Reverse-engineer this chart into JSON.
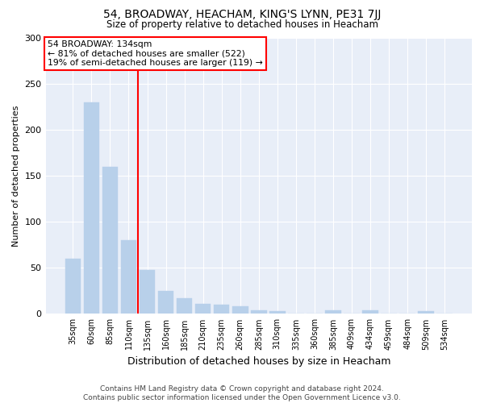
{
  "title": "54, BROADWAY, HEACHAM, KING'S LYNN, PE31 7JJ",
  "subtitle": "Size of property relative to detached houses in Heacham",
  "xlabel": "Distribution of detached houses by size in Heacham",
  "ylabel": "Number of detached properties",
  "categories": [
    "35sqm",
    "60sqm",
    "85sqm",
    "110sqm",
    "135sqm",
    "160sqm",
    "185sqm",
    "210sqm",
    "235sqm",
    "260sqm",
    "285sqm",
    "310sqm",
    "335sqm",
    "360sqm",
    "385sqm",
    "409sqm",
    "434sqm",
    "459sqm",
    "484sqm",
    "509sqm",
    "534sqm"
  ],
  "values": [
    60,
    230,
    160,
    80,
    48,
    25,
    17,
    11,
    10,
    8,
    4,
    3,
    0,
    0,
    4,
    0,
    4,
    0,
    0,
    3,
    0
  ],
  "bar_color": "#b8d0ea",
  "bar_edge_color": "#b8d0ea",
  "red_line_index": 4,
  "annotation_title": "54 BROADWAY: 134sqm",
  "annotation_line1": "← 81% of detached houses are smaller (522)",
  "annotation_line2": "19% of semi-detached houses are larger (119) →",
  "ylim": [
    0,
    300
  ],
  "yticks": [
    0,
    50,
    100,
    150,
    200,
    250,
    300
  ],
  "fig_bg_color": "#ffffff",
  "plot_bg_color": "#e8eef8",
  "grid_color": "#ffffff",
  "footer_line1": "Contains HM Land Registry data © Crown copyright and database right 2024.",
  "footer_line2": "Contains public sector information licensed under the Open Government Licence v3.0."
}
